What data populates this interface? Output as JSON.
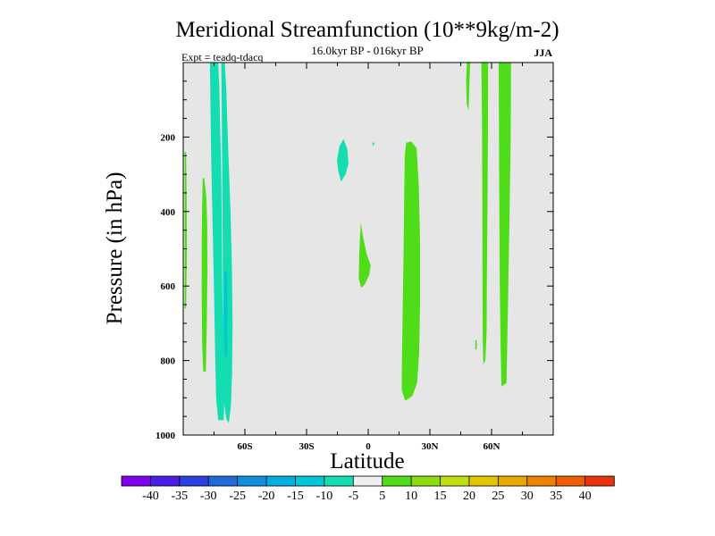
{
  "chart_data": {
    "type": "heatmap",
    "title": "Meridional Streamfunction (10**9kg/m-2)",
    "subtitle": "16.0kyr BP - 016kyr BP",
    "left_annotation": "Expt = teadq-tdacq",
    "right_annotation": "JJA",
    "xlabel": "Latitude",
    "ylabel": "Pressure (in hPa)",
    "xlim": [
      -90,
      90
    ],
    "ylim": [
      1000,
      0
    ],
    "x_ticks": [
      {
        "value": -60,
        "label": "60S"
      },
      {
        "value": -30,
        "label": "30S"
      },
      {
        "value": 0,
        "label": "0"
      },
      {
        "value": 30,
        "label": "30N"
      },
      {
        "value": 60,
        "label": "60N"
      }
    ],
    "y_ticks": [
      {
        "value": 200,
        "label": "200"
      },
      {
        "value": 400,
        "label": "400"
      },
      {
        "value": 600,
        "label": "600"
      },
      {
        "value": 800,
        "label": "800"
      },
      {
        "value": 1000,
        "label": "1000"
      }
    ],
    "background_color": "#e6e6e6",
    "colorbar": {
      "boundaries": [
        "-40",
        "-35",
        "-30",
        "-25",
        "-20",
        "-15",
        "-10",
        "-5",
        "5",
        "10",
        "15",
        "20",
        "25",
        "30",
        "35",
        "40"
      ],
      "colors": [
        "#7f00ee",
        "#4b1ee6",
        "#2c3fe0",
        "#1f6ad8",
        "#0f8ede",
        "#00aee0",
        "#00c6d8",
        "#13ddb1",
        "#eeeeee",
        "#4fdd19",
        "#8edc10",
        "#c0dc12",
        "#e1c600",
        "#e8a800",
        "#ec8200",
        "#ee5d00",
        "#e8340e"
      ]
    },
    "contours": [
      {
        "name": "sh-outer-jet",
        "level": "-5 to -10",
        "color": "#13ddb1",
        "points": [
          [
            -77,
            0
          ],
          [
            -73,
            0
          ],
          [
            -72.5,
            60
          ],
          [
            -72,
            180
          ],
          [
            -71.5,
            300
          ],
          [
            -71.2,
            450
          ],
          [
            -71,
            600
          ],
          [
            -70.5,
            750
          ],
          [
            -70,
            900
          ],
          [
            -70.3,
            960
          ],
          [
            -73,
            960
          ],
          [
            -74,
            900
          ],
          [
            -74.5,
            780
          ],
          [
            -75,
            620
          ],
          [
            -75.5,
            480
          ],
          [
            -76,
            360
          ],
          [
            -76.5,
            230
          ],
          [
            -76.8,
            100
          ]
        ]
      },
      {
        "name": "sh-inner-jet",
        "level": "-5 to -10",
        "color": "#13ddb1",
        "points": [
          [
            -71.5,
            0
          ],
          [
            -69.8,
            0
          ],
          [
            -69,
            80
          ],
          [
            -68,
            250
          ],
          [
            -67,
            400
          ],
          [
            -66.3,
            550
          ],
          [
            -66,
            700
          ],
          [
            -66.2,
            830
          ],
          [
            -66.8,
            920
          ],
          [
            -67.8,
            968
          ],
          [
            -69,
            958
          ],
          [
            -70,
            920
          ],
          [
            -70.5,
            860
          ],
          [
            -70.7,
            700
          ],
          [
            -70.8,
            500
          ],
          [
            -71,
            300
          ],
          [
            -71.2,
            150
          ]
        ]
      },
      {
        "name": "sh-cell-core",
        "level": "-10 to -15",
        "color": "#00c6d8",
        "points": [
          [
            -70,
            560
          ],
          [
            -68.8,
            560
          ],
          [
            -68.5,
            650
          ],
          [
            -68.7,
            780
          ],
          [
            -69.6,
            800
          ],
          [
            -70.2,
            700
          ]
        ]
      },
      {
        "name": "sh-green-band",
        "level": "5 to 10",
        "color": "#4fdd19",
        "points": [
          [
            -80.5,
            310
          ],
          [
            -79.8,
            310
          ],
          [
            -78.8,
            360
          ],
          [
            -78.3,
            440
          ],
          [
            -78.2,
            560
          ],
          [
            -78.5,
            700
          ],
          [
            -79,
            830
          ],
          [
            -80.2,
            830
          ],
          [
            -80.8,
            760
          ],
          [
            -81,
            620
          ],
          [
            -81,
            480
          ],
          [
            -80.8,
            380
          ]
        ]
      },
      {
        "name": "sh-edge-sliver",
        "level": "5 to 10",
        "color": "#4fdd19",
        "points": [
          [
            -89.3,
            240
          ],
          [
            -88.6,
            240
          ],
          [
            -88.3,
            380
          ],
          [
            -88.2,
            520
          ],
          [
            -88.6,
            660
          ],
          [
            -89.3,
            660
          ]
        ]
      },
      {
        "name": "tropics-blob",
        "level": "-5 to -10",
        "color": "#13ddb1",
        "points": [
          [
            -12,
            205
          ],
          [
            -10.2,
            232
          ],
          [
            -9.6,
            270
          ],
          [
            -11,
            300
          ],
          [
            -13.2,
            320
          ],
          [
            -14.6,
            290
          ],
          [
            -15.2,
            262
          ],
          [
            -14,
            225
          ]
        ]
      },
      {
        "name": "tropics-dot",
        "level": "-5 to -10",
        "color": "#13ddb1",
        "points": [
          [
            2.3,
            213
          ],
          [
            3,
            217
          ],
          [
            2.6,
            224
          ],
          [
            2,
            219
          ]
        ]
      },
      {
        "name": "eq-green",
        "level": "5 to 10",
        "color": "#4fdd19",
        "points": [
          [
            -3.6,
            430
          ],
          [
            -2.5,
            470
          ],
          [
            -0.7,
            515
          ],
          [
            1.2,
            545
          ],
          [
            0.5,
            570
          ],
          [
            -1.6,
            595
          ],
          [
            -3.4,
            605
          ],
          [
            -4.6,
            580
          ],
          [
            -4.4,
            520
          ],
          [
            -4,
            470
          ]
        ]
      },
      {
        "name": "nh-tropical-band",
        "level": "5 to 10",
        "color": "#4fdd19",
        "points": [
          [
            18.5,
            215
          ],
          [
            21,
            212
          ],
          [
            23.5,
            230
          ],
          [
            24.6,
            330
          ],
          [
            25.2,
            480
          ],
          [
            25.2,
            650
          ],
          [
            24.8,
            780
          ],
          [
            23.8,
            860
          ],
          [
            21.5,
            895
          ],
          [
            18,
            908
          ],
          [
            16.3,
            880
          ],
          [
            16.4,
            800
          ],
          [
            16.8,
            660
          ],
          [
            17.2,
            500
          ],
          [
            17.5,
            350
          ],
          [
            17.8,
            250
          ]
        ]
      },
      {
        "name": "nh-thin-streak",
        "level": "5 to 10",
        "color": "#4fdd19",
        "points": [
          [
            48,
            0
          ],
          [
            49.6,
            0
          ],
          [
            49.2,
            60
          ],
          [
            48.8,
            130
          ],
          [
            47.9,
            110
          ],
          [
            47.6,
            50
          ]
        ]
      },
      {
        "name": "nh-mid-band",
        "level": "5 to 10",
        "color": "#4fdd19",
        "points": [
          [
            55,
            0
          ],
          [
            58.3,
            0
          ],
          [
            58.3,
            80
          ],
          [
            58.2,
            200
          ],
          [
            58,
            400
          ],
          [
            57.7,
            600
          ],
          [
            57.6,
            720
          ],
          [
            57,
            800
          ],
          [
            56,
            810
          ],
          [
            55.7,
            740
          ],
          [
            55.6,
            600
          ],
          [
            55.5,
            400
          ],
          [
            55.4,
            200
          ],
          [
            55.2,
            80
          ]
        ]
      },
      {
        "name": "nh-mid-dot",
        "level": "5 to 10",
        "color": "#4fdd19",
        "points": [
          [
            52.1,
            745
          ],
          [
            52.8,
            745
          ],
          [
            52.8,
            770
          ],
          [
            52.1,
            770
          ]
        ]
      },
      {
        "name": "nh-wide-band",
        "level": "5 to 10",
        "color": "#4fdd19",
        "points": [
          [
            63.5,
            0
          ],
          [
            69.5,
            0
          ],
          [
            69.3,
            200
          ],
          [
            68.8,
            400
          ],
          [
            68.3,
            550
          ],
          [
            68,
            650
          ],
          [
            67.6,
            760
          ],
          [
            67.3,
            860
          ],
          [
            64.8,
            870
          ],
          [
            64.4,
            760
          ],
          [
            64,
            600
          ],
          [
            63.8,
            400
          ],
          [
            63.6,
            200
          ]
        ]
      }
    ]
  }
}
